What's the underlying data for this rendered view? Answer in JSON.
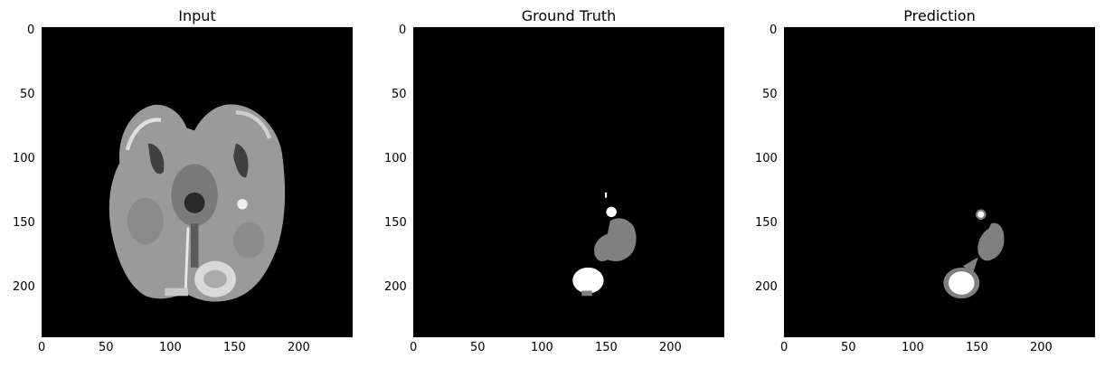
{
  "figure": {
    "panels": [
      {
        "id": "input",
        "title": "Input",
        "x_ticks": [
          "0",
          "50",
          "100",
          "150",
          "200"
        ],
        "y_ticks": [
          "0",
          "50",
          "100",
          "150",
          "200"
        ]
      },
      {
        "id": "ground-truth",
        "title": "Ground Truth",
        "x_ticks": [
          "0",
          "50",
          "100",
          "150",
          "200"
        ],
        "y_ticks": [
          "0",
          "50",
          "100",
          "150",
          "200"
        ]
      },
      {
        "id": "prediction",
        "title": "Prediction",
        "x_ticks": [
          "0",
          "50",
          "100",
          "150",
          "200"
        ],
        "y_ticks": [
          "0",
          "50",
          "100",
          "150",
          "200"
        ]
      }
    ],
    "axis_limits": {
      "x": [
        0,
        240
      ],
      "y": [
        0,
        240
      ]
    },
    "colors": {
      "background": "#000000",
      "tissue_gray": "#808080",
      "enhancing_white": "#ffffff"
    }
  }
}
